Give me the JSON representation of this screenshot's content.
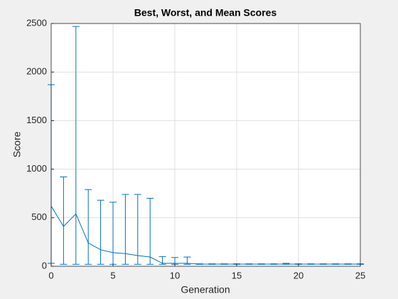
{
  "chart_data": {
    "type": "errorbar",
    "title": "Best, Worst, and Mean Scores",
    "x_label": "Generation",
    "y_label": "Score",
    "x": [
      0,
      1,
      2,
      3,
      4,
      5,
      6,
      7,
      8,
      9,
      10,
      11,
      12,
      13,
      14,
      15,
      16,
      17,
      18,
      19,
      20,
      21,
      22,
      23,
      24,
      25
    ],
    "mean": [
      620,
      410,
      540,
      240,
      170,
      140,
      130,
      110,
      95,
      30,
      30,
      30,
      22,
      22,
      22,
      22,
      22,
      22,
      22,
      22,
      22,
      22,
      22,
      22,
      22,
      22
    ],
    "best": [
      30,
      20,
      20,
      20,
      20,
      20,
      20,
      20,
      20,
      20,
      20,
      20,
      20,
      20,
      20,
      20,
      20,
      20,
      20,
      20,
      20,
      20,
      20,
      20,
      20,
      20
    ],
    "worst": [
      1870,
      920,
      2470,
      790,
      680,
      660,
      740,
      740,
      700,
      100,
      90,
      95,
      25,
      25,
      25,
      25,
      25,
      25,
      25,
      30,
      25,
      25,
      25,
      25,
      25,
      25
    ],
    "color": "#0072bd",
    "xlim": [
      0,
      25
    ],
    "xticks": [
      0,
      5,
      10,
      15,
      20,
      25
    ],
    "ylim": [
      0,
      2500
    ],
    "yticks": [
      0,
      500,
      1000,
      1500,
      2000,
      2500
    ],
    "grid": true
  }
}
